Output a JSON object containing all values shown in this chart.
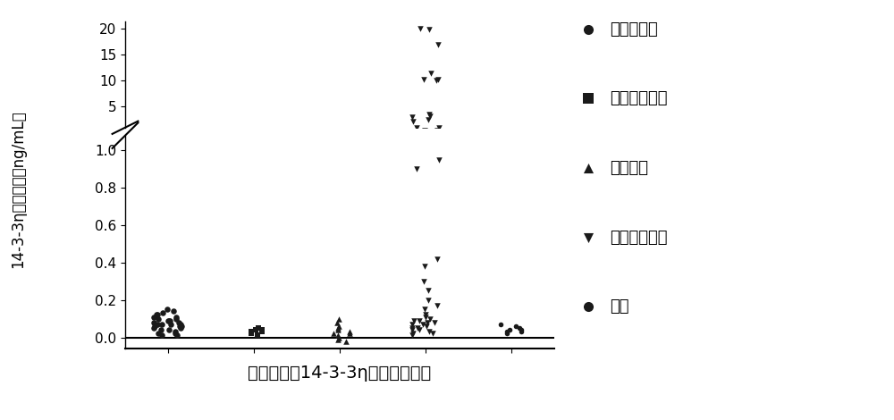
{
  "groups": [
    "健康体检组",
    "强直性脊柱炎",
    "骨关节炎",
    "类风湿关节炎",
    "痛风"
  ],
  "markers": [
    "o",
    "s",
    "^",
    "v",
    "o"
  ],
  "xlabel": "不同样品组14-3-3η蛋白检测结果",
  "ylabel": "14-3-3η蛋白浓度（ng/mL）",
  "xlabel_fontsize": 14,
  "ylabel_fontsize": 12,
  "legend_fontsize": 13,
  "group1_circle": [
    0.02,
    0.03,
    0.04,
    0.04,
    0.05,
    0.05,
    0.06,
    0.06,
    0.06,
    0.07,
    0.07,
    0.07,
    0.07,
    0.08,
    0.08,
    0.09,
    0.09,
    0.09,
    0.1,
    0.1,
    0.11,
    0.11,
    0.12,
    0.12,
    0.13,
    0.14,
    0.15,
    0.01,
    0.01,
    0.02
  ],
  "group2_square": [
    0.01,
    0.02,
    0.03,
    0.03,
    0.04,
    0.04,
    0.05
  ],
  "group3_triangle_up": [
    -0.02,
    -0.01,
    0.0,
    0.01,
    0.02,
    0.02,
    0.03,
    0.04,
    0.05,
    0.06,
    0.08,
    0.1
  ],
  "group4_triangle_down": [
    0.01,
    0.02,
    0.02,
    0.03,
    0.04,
    0.04,
    0.05,
    0.05,
    0.06,
    0.07,
    0.07,
    0.08,
    0.08,
    0.09,
    0.09,
    0.1,
    0.11,
    0.12,
    0.15,
    0.17,
    0.2,
    0.25,
    0.3,
    0.38,
    0.42,
    0.9,
    0.95,
    2.2,
    2.5,
    3.0,
    3.2,
    3.5,
    10.0,
    10.2,
    10.3,
    11.5,
    17.0,
    19.8,
    20.0
  ],
  "group5_circle_small": [
    0.02,
    0.03,
    0.03,
    0.04,
    0.04,
    0.05,
    0.06,
    0.07
  ],
  "color": "#1a1a1a",
  "background_color": "#ffffff",
  "upper_yticks": [
    5,
    10,
    15,
    20
  ],
  "lower_yticks": [
    0.0,
    0.2,
    0.4,
    0.6,
    0.8,
    1.0
  ],
  "upper_ylim": [
    1.0,
    21.5
  ],
  "lower_ylim": [
    -0.06,
    1.08
  ]
}
